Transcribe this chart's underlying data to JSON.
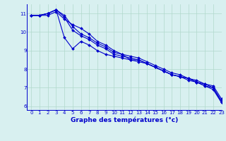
{
  "x_hours": [
    0,
    1,
    2,
    3,
    4,
    5,
    6,
    7,
    8,
    9,
    10,
    11,
    12,
    13,
    14,
    15,
    16,
    17,
    18,
    19,
    20,
    21,
    22,
    23
  ],
  "series": [
    [
      10.9,
      10.9,
      10.9,
      11.1,
      10.7,
      10.4,
      10.2,
      9.9,
      9.5,
      9.3,
      9.0,
      8.8,
      8.5,
      8.4,
      8.3,
      8.1,
      7.9,
      7.7,
      7.6,
      7.4,
      7.3,
      7.1,
      6.9,
      6.2
    ],
    [
      10.9,
      10.9,
      11.0,
      11.2,
      10.8,
      10.1,
      9.8,
      9.6,
      9.3,
      9.1,
      8.8,
      8.7,
      8.6,
      8.5,
      8.3,
      8.1,
      7.9,
      7.7,
      7.6,
      7.5,
      7.3,
      7.2,
      7.0,
      6.3
    ],
    [
      10.9,
      10.9,
      11.0,
      11.2,
      10.9,
      10.3,
      9.9,
      9.7,
      9.4,
      9.2,
      8.9,
      8.8,
      8.7,
      8.6,
      8.4,
      8.2,
      8.0,
      7.8,
      7.7,
      7.5,
      7.4,
      7.2,
      7.1,
      6.4
    ],
    [
      10.9,
      10.9,
      11.0,
      11.2,
      9.7,
      9.1,
      9.5,
      9.3,
      9.0,
      8.8,
      8.7,
      8.6,
      8.5,
      8.5,
      8.3,
      8.1,
      7.9,
      7.7,
      7.6,
      7.5,
      7.3,
      7.1,
      7.0,
      6.2
    ]
  ],
  "line_color": "#0000cc",
  "bg_color": "#d8f0f0",
  "grid_color": "#b0d8cc",
  "xlabel": "Graphe des températures (°c)",
  "ylim": [
    5.8,
    11.5
  ],
  "xlim": [
    -0.5,
    23
  ],
  "yticks": [
    6,
    7,
    8,
    9,
    10,
    11
  ],
  "xticks": [
    0,
    1,
    2,
    3,
    4,
    5,
    6,
    7,
    8,
    9,
    10,
    11,
    12,
    13,
    14,
    15,
    16,
    17,
    18,
    19,
    20,
    21,
    22,
    23
  ],
  "marker": "D",
  "markersize": 2.0,
  "linewidth": 0.8,
  "tick_fontsize": 5.0,
  "xlabel_fontsize": 6.5
}
